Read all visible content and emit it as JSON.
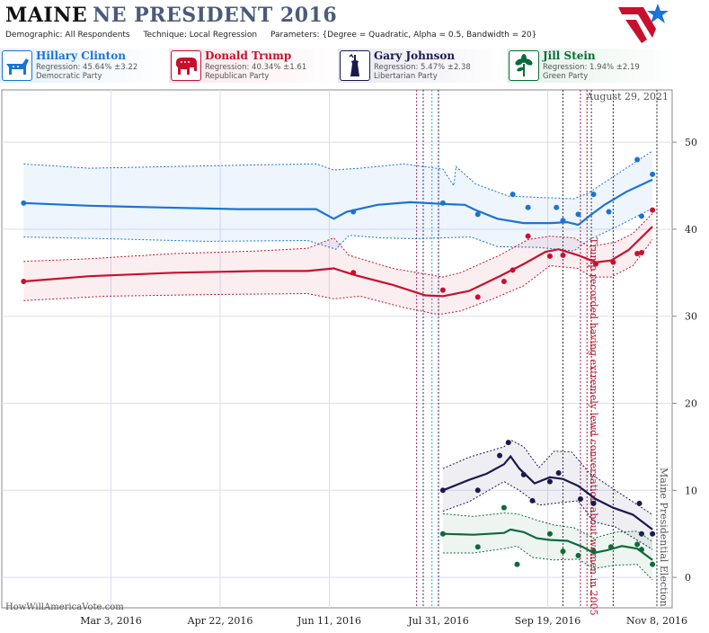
{
  "header": {
    "state": "MAINE",
    "race": "NE PRESIDENT 2016",
    "demographic": "Demographic: All Respondents",
    "technique": "Technique: Local Regression",
    "parameters": "Parameters: {Degree = Quadratic, Alpha = 0.5, Bandwidth = 20}"
  },
  "candidates": [
    {
      "name": "Hillary Clinton",
      "regression": "Regression: 45.64% ±3.22",
      "party": "Democratic Party",
      "color": "#1a73d6",
      "icon": "donkey-icon"
    },
    {
      "name": "Donald Trump",
      "regression": "Regression: 40.34% ±1.61",
      "party": "Republican Party",
      "color": "#c8102e",
      "icon": "elephant-icon"
    },
    {
      "name": "Gary Johnson",
      "regression": "Regression: 5.47% ±2.38",
      "party": "Libertarian Party",
      "color": "#1c1850",
      "icon": "statue-of-liberty-icon"
    },
    {
      "name": "Jill Stein",
      "regression": "Regression: 1.94% ±2.19",
      "party": "Green Party",
      "color": "#0b6b3a",
      "icon": "plant-icon"
    }
  ],
  "watermark": "HowWillAmericaVote.com",
  "chart_data": {
    "type": "line",
    "date_label": "August 29, 2021",
    "x_ticks": [
      "Mar 3, 2016",
      "Apr 22, 2016",
      "Jun 11, 2016",
      "Jul 31, 2016",
      "Sep 19, 2016",
      "Nov 8, 2016"
    ],
    "y_ticks": [
      0,
      10,
      20,
      30,
      40,
      50
    ],
    "xlim": [
      "2016-01-13",
      "2016-11-15"
    ],
    "ylim": [
      -3.5,
      56
    ],
    "grid": true,
    "annotations": [
      {
        "text": "Trump recorded having extremely lewd conversation about women in 2005",
        "date": "2016-10-07",
        "color": "#c8102e"
      },
      {
        "text": "Maine Presidential Election",
        "date": "2016-11-08",
        "color": "#555555"
      }
    ],
    "event_lines": [
      {
        "date": "2016-07-21",
        "color": "#9a2060"
      },
      {
        "date": "2016-07-24",
        "color": "#2a2a7a"
      },
      {
        "date": "2016-07-28",
        "color": "#2aaacc"
      },
      {
        "date": "2016-07-31",
        "color": "#2a2a7a"
      },
      {
        "date": "2016-09-26",
        "color": "#333333"
      },
      {
        "date": "2016-10-04",
        "color": "#9a2060"
      },
      {
        "date": "2016-10-07",
        "color": "#c8102e"
      },
      {
        "date": "2016-10-09",
        "color": "#333333"
      },
      {
        "date": "2016-10-19",
        "color": "#333333"
      },
      {
        "date": "2016-11-08",
        "color": "#333333"
      }
    ],
    "series": [
      {
        "name": "Hillary Clinton",
        "color": "#1a73d6",
        "trend": [
          [
            "2016-01-23",
            43.0
          ],
          [
            "2016-02-22",
            42.7
          ],
          [
            "2016-03-25",
            42.5
          ],
          [
            "2016-04-30",
            42.3
          ],
          [
            "2016-06-05",
            42.3
          ],
          [
            "2016-06-13",
            41.2
          ],
          [
            "2016-06-19",
            42.0
          ],
          [
            "2016-07-03",
            42.8
          ],
          [
            "2016-07-18",
            43.1
          ],
          [
            "2016-08-02",
            42.9
          ],
          [
            "2016-08-12",
            42.8
          ],
          [
            "2016-08-17",
            42.2
          ],
          [
            "2016-08-27",
            41.2
          ],
          [
            "2016-09-08",
            40.7
          ],
          [
            "2016-09-20",
            40.7
          ],
          [
            "2016-09-28",
            40.8
          ],
          [
            "2016-10-03",
            40.5
          ],
          [
            "2016-10-08",
            41.5
          ],
          [
            "2016-10-15",
            42.8
          ],
          [
            "2016-10-25",
            44.3
          ],
          [
            "2016-11-06",
            45.7
          ]
        ],
        "band_upper": [
          [
            "2016-01-23",
            47.5
          ],
          [
            "2016-02-22",
            47.0
          ],
          [
            "2016-04-01",
            47.2
          ],
          [
            "2016-05-10",
            47.4
          ],
          [
            "2016-06-05",
            47.5
          ],
          [
            "2016-06-13",
            46.8
          ],
          [
            "2016-06-25",
            47.0
          ],
          [
            "2016-07-15",
            47.5
          ],
          [
            "2016-08-02",
            46.9
          ],
          [
            "2016-08-07",
            45.0
          ],
          [
            "2016-08-08",
            47.2
          ],
          [
            "2016-08-17",
            45.2
          ],
          [
            "2016-09-01",
            43.8
          ],
          [
            "2016-09-20",
            43.6
          ],
          [
            "2016-10-01",
            43.5
          ],
          [
            "2016-10-08",
            44.2
          ],
          [
            "2016-10-20",
            46.2
          ],
          [
            "2016-11-06",
            49.0
          ]
        ],
        "band_lower": [
          [
            "2016-01-23",
            39.1
          ],
          [
            "2016-03-01",
            38.9
          ],
          [
            "2016-04-15",
            38.6
          ],
          [
            "2016-06-01",
            38.7
          ],
          [
            "2016-06-14",
            37.7
          ],
          [
            "2016-06-20",
            39.3
          ],
          [
            "2016-07-05",
            39.0
          ],
          [
            "2016-07-20",
            38.9
          ],
          [
            "2016-08-01",
            39.0
          ],
          [
            "2016-08-15",
            39.1
          ],
          [
            "2016-08-27",
            38.0
          ],
          [
            "2016-09-15",
            37.9
          ],
          [
            "2016-10-01",
            37.5
          ],
          [
            "2016-10-08",
            38.8
          ],
          [
            "2016-10-20",
            40.2
          ],
          [
            "2016-11-06",
            42.4
          ]
        ],
        "points": [
          [
            "2016-01-23",
            43.0
          ],
          [
            "2016-06-22",
            42.0
          ],
          [
            "2016-08-02",
            43.0
          ],
          [
            "2016-08-18",
            41.7
          ],
          [
            "2016-09-03",
            44.0
          ],
          [
            "2016-09-10",
            42.5
          ],
          [
            "2016-09-23",
            42.5
          ],
          [
            "2016-09-26",
            41.0
          ],
          [
            "2016-10-03",
            41.7
          ],
          [
            "2016-10-10",
            44.0
          ],
          [
            "2016-10-17",
            42.0
          ],
          [
            "2016-10-30",
            48.0
          ],
          [
            "2016-11-01",
            41.5
          ],
          [
            "2016-11-06",
            46.3
          ]
        ]
      },
      {
        "name": "Donald Trump",
        "color": "#c8102e",
        "trend": [
          [
            "2016-01-23",
            34.0
          ],
          [
            "2016-02-22",
            34.6
          ],
          [
            "2016-04-01",
            35.0
          ],
          [
            "2016-05-10",
            35.2
          ],
          [
            "2016-06-01",
            35.2
          ],
          [
            "2016-06-13",
            35.5
          ],
          [
            "2016-06-23",
            34.7
          ],
          [
            "2016-07-10",
            33.6
          ],
          [
            "2016-07-25",
            32.4
          ],
          [
            "2016-08-02",
            32.3
          ],
          [
            "2016-08-14",
            32.9
          ],
          [
            "2016-08-28",
            34.6
          ],
          [
            "2016-09-08",
            36.0
          ],
          [
            "2016-09-18",
            37.4
          ],
          [
            "2016-09-24",
            37.7
          ],
          [
            "2016-10-03",
            37.0
          ],
          [
            "2016-10-11",
            36.2
          ],
          [
            "2016-10-18",
            36.4
          ],
          [
            "2016-10-26",
            37.6
          ],
          [
            "2016-11-06",
            40.3
          ]
        ],
        "band_upper": [
          [
            "2016-01-23",
            36.3
          ],
          [
            "2016-02-22",
            36.6
          ],
          [
            "2016-04-01",
            37.2
          ],
          [
            "2016-05-10",
            37.5
          ],
          [
            "2016-06-01",
            37.8
          ],
          [
            "2016-06-13",
            39.0
          ],
          [
            "2016-06-20",
            37.0
          ],
          [
            "2016-07-10",
            35.5
          ],
          [
            "2016-08-02",
            34.5
          ],
          [
            "2016-08-10",
            35.0
          ],
          [
            "2016-08-28",
            37.0
          ],
          [
            "2016-09-10",
            38.8
          ],
          [
            "2016-09-20",
            39.2
          ],
          [
            "2016-10-01",
            39.0
          ],
          [
            "2016-10-08",
            38.0
          ],
          [
            "2016-10-20",
            38.5
          ],
          [
            "2016-10-28",
            39.5
          ],
          [
            "2016-11-06",
            41.8
          ]
        ],
        "band_lower": [
          [
            "2016-01-23",
            31.8
          ],
          [
            "2016-03-01",
            32.3
          ],
          [
            "2016-04-20",
            32.5
          ],
          [
            "2016-06-01",
            32.6
          ],
          [
            "2016-06-13",
            32.0
          ],
          [
            "2016-06-25",
            32.3
          ],
          [
            "2016-07-15",
            31.0
          ],
          [
            "2016-07-31",
            30.2
          ],
          [
            "2016-08-10",
            30.6
          ],
          [
            "2016-08-25",
            32.0
          ],
          [
            "2016-09-08",
            33.5
          ],
          [
            "2016-09-20",
            35.8
          ],
          [
            "2016-10-03",
            35.5
          ],
          [
            "2016-10-09",
            34.5
          ],
          [
            "2016-10-18",
            34.5
          ],
          [
            "2016-10-28",
            35.8
          ],
          [
            "2016-11-06",
            38.8
          ]
        ],
        "points": [
          [
            "2016-01-23",
            34.0
          ],
          [
            "2016-06-22",
            35.0
          ],
          [
            "2016-08-02",
            33.0
          ],
          [
            "2016-08-18",
            32.2
          ],
          [
            "2016-08-30",
            34.0
          ],
          [
            "2016-09-03",
            35.3
          ],
          [
            "2016-09-10",
            39.2
          ],
          [
            "2016-09-20",
            36.9
          ],
          [
            "2016-09-26",
            37.0
          ],
          [
            "2016-10-11",
            36.0
          ],
          [
            "2016-10-19",
            36.2
          ],
          [
            "2016-10-30",
            37.2
          ],
          [
            "2016-11-01",
            37.3
          ],
          [
            "2016-11-06",
            42.2
          ]
        ]
      },
      {
        "name": "Gary Johnson",
        "color": "#1c1850",
        "trend": [
          [
            "2016-08-02",
            10.0
          ],
          [
            "2016-08-14",
            11.2
          ],
          [
            "2016-08-22",
            11.9
          ],
          [
            "2016-08-30",
            13.0
          ],
          [
            "2016-09-02",
            13.9
          ],
          [
            "2016-09-06",
            12.5
          ],
          [
            "2016-09-13",
            10.8
          ],
          [
            "2016-09-20",
            11.5
          ],
          [
            "2016-09-26",
            11.3
          ],
          [
            "2016-10-03",
            10.5
          ],
          [
            "2016-10-11",
            9.0
          ],
          [
            "2016-10-19",
            8.0
          ],
          [
            "2016-10-28",
            7.2
          ],
          [
            "2016-11-06",
            5.5
          ]
        ],
        "band_upper": [
          [
            "2016-08-02",
            12.5
          ],
          [
            "2016-08-14",
            13.8
          ],
          [
            "2016-08-30",
            15.0
          ],
          [
            "2016-09-02",
            15.8
          ],
          [
            "2016-09-08",
            15.0
          ],
          [
            "2016-09-15",
            12.6
          ],
          [
            "2016-09-22",
            14.5
          ],
          [
            "2016-09-30",
            14.4
          ],
          [
            "2016-10-08",
            12.0
          ],
          [
            "2016-10-20",
            10.0
          ],
          [
            "2016-11-06",
            7.2
          ]
        ],
        "band_lower": [
          [
            "2016-08-02",
            7.6
          ],
          [
            "2016-08-14",
            8.7
          ],
          [
            "2016-08-30",
            11.0
          ],
          [
            "2016-09-06",
            10.0
          ],
          [
            "2016-09-15",
            8.3
          ],
          [
            "2016-09-22",
            8.5
          ],
          [
            "2016-10-03",
            8.8
          ],
          [
            "2016-10-10",
            6.4
          ],
          [
            "2016-10-20",
            5.8
          ],
          [
            "2016-11-06",
            3.2
          ]
        ],
        "points": [
          [
            "2016-08-02",
            10.0
          ],
          [
            "2016-08-18",
            10.0
          ],
          [
            "2016-08-28",
            14.0
          ],
          [
            "2016-09-01",
            15.5
          ],
          [
            "2016-09-08",
            11.8
          ],
          [
            "2016-09-12",
            8.8
          ],
          [
            "2016-09-20",
            11.0
          ],
          [
            "2016-09-24",
            12.0
          ],
          [
            "2016-10-04",
            9.0
          ],
          [
            "2016-10-10",
            8.5
          ],
          [
            "2016-10-31",
            8.5
          ],
          [
            "2016-11-01",
            5.0
          ],
          [
            "2016-11-06",
            5.0
          ]
        ]
      },
      {
        "name": "Jill Stein",
        "color": "#0b6b3a",
        "trend": [
          [
            "2016-08-02",
            5.0
          ],
          [
            "2016-08-16",
            4.9
          ],
          [
            "2016-08-30",
            5.1
          ],
          [
            "2016-09-02",
            5.5
          ],
          [
            "2016-09-08",
            5.2
          ],
          [
            "2016-09-14",
            4.5
          ],
          [
            "2016-09-20",
            4.3
          ],
          [
            "2016-09-28",
            4.2
          ],
          [
            "2016-10-05",
            3.5
          ],
          [
            "2016-10-10",
            2.8
          ],
          [
            "2016-10-16",
            3.1
          ],
          [
            "2016-10-23",
            3.6
          ],
          [
            "2016-10-30",
            3.3
          ],
          [
            "2016-11-06",
            2.0
          ]
        ],
        "band_upper": [
          [
            "2016-08-02",
            7.3
          ],
          [
            "2016-08-16",
            7.0
          ],
          [
            "2016-08-30",
            7.4
          ],
          [
            "2016-09-05",
            7.3
          ],
          [
            "2016-09-15",
            6.5
          ],
          [
            "2016-09-22",
            6.0
          ],
          [
            "2016-10-01",
            5.7
          ],
          [
            "2016-10-10",
            4.5
          ],
          [
            "2016-10-20",
            5.2
          ],
          [
            "2016-10-30",
            5.3
          ],
          [
            "2016-11-06",
            4.1
          ]
        ],
        "band_lower": [
          [
            "2016-08-02",
            2.8
          ],
          [
            "2016-08-16",
            2.8
          ],
          [
            "2016-08-30",
            3.3
          ],
          [
            "2016-09-05",
            3.6
          ],
          [
            "2016-09-12",
            2.3
          ],
          [
            "2016-09-22",
            2.0
          ],
          [
            "2016-10-03",
            2.1
          ],
          [
            "2016-10-10",
            1.0
          ],
          [
            "2016-10-20",
            1.4
          ],
          [
            "2016-10-30",
            1.5
          ],
          [
            "2016-11-06",
            -0.3
          ]
        ],
        "points": [
          [
            "2016-08-02",
            5.0
          ],
          [
            "2016-08-18",
            3.5
          ],
          [
            "2016-08-30",
            8.0
          ],
          [
            "2016-09-05",
            1.5
          ],
          [
            "2016-09-20",
            5.0
          ],
          [
            "2016-09-26",
            3.0
          ],
          [
            "2016-10-03",
            2.5
          ],
          [
            "2016-10-10",
            3.0
          ],
          [
            "2016-10-18",
            3.5
          ],
          [
            "2016-10-30",
            3.8
          ],
          [
            "2016-11-01",
            3.2
          ],
          [
            "2016-11-06",
            1.5
          ]
        ]
      }
    ]
  }
}
